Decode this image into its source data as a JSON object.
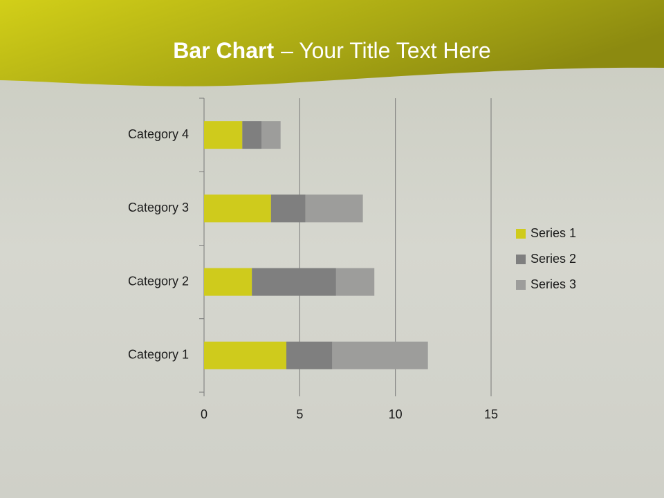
{
  "chart_data": {
    "type": "bar",
    "orientation": "horizontal",
    "stacked": true,
    "title_lead": "Bar Chart",
    "title": "– Your Title Text Here",
    "categories": [
      "Category 1",
      "Category 2",
      "Category 3",
      "Category 4"
    ],
    "series": [
      {
        "name": "Series 1",
        "color": "#cfcb1c",
        "values": [
          4.3,
          2.5,
          3.5,
          2
        ]
      },
      {
        "name": "Series 2",
        "color": "#7f7f7f",
        "values": [
          2.4,
          4.4,
          1.8,
          1
        ]
      },
      {
        "name": "Series 3",
        "color": "#9d9d9b",
        "values": [
          5,
          2,
          3,
          1
        ]
      }
    ],
    "xlim": [
      0,
      15
    ],
    "xticks": [
      0,
      5,
      10,
      15
    ],
    "grid": true,
    "legend": "right"
  }
}
